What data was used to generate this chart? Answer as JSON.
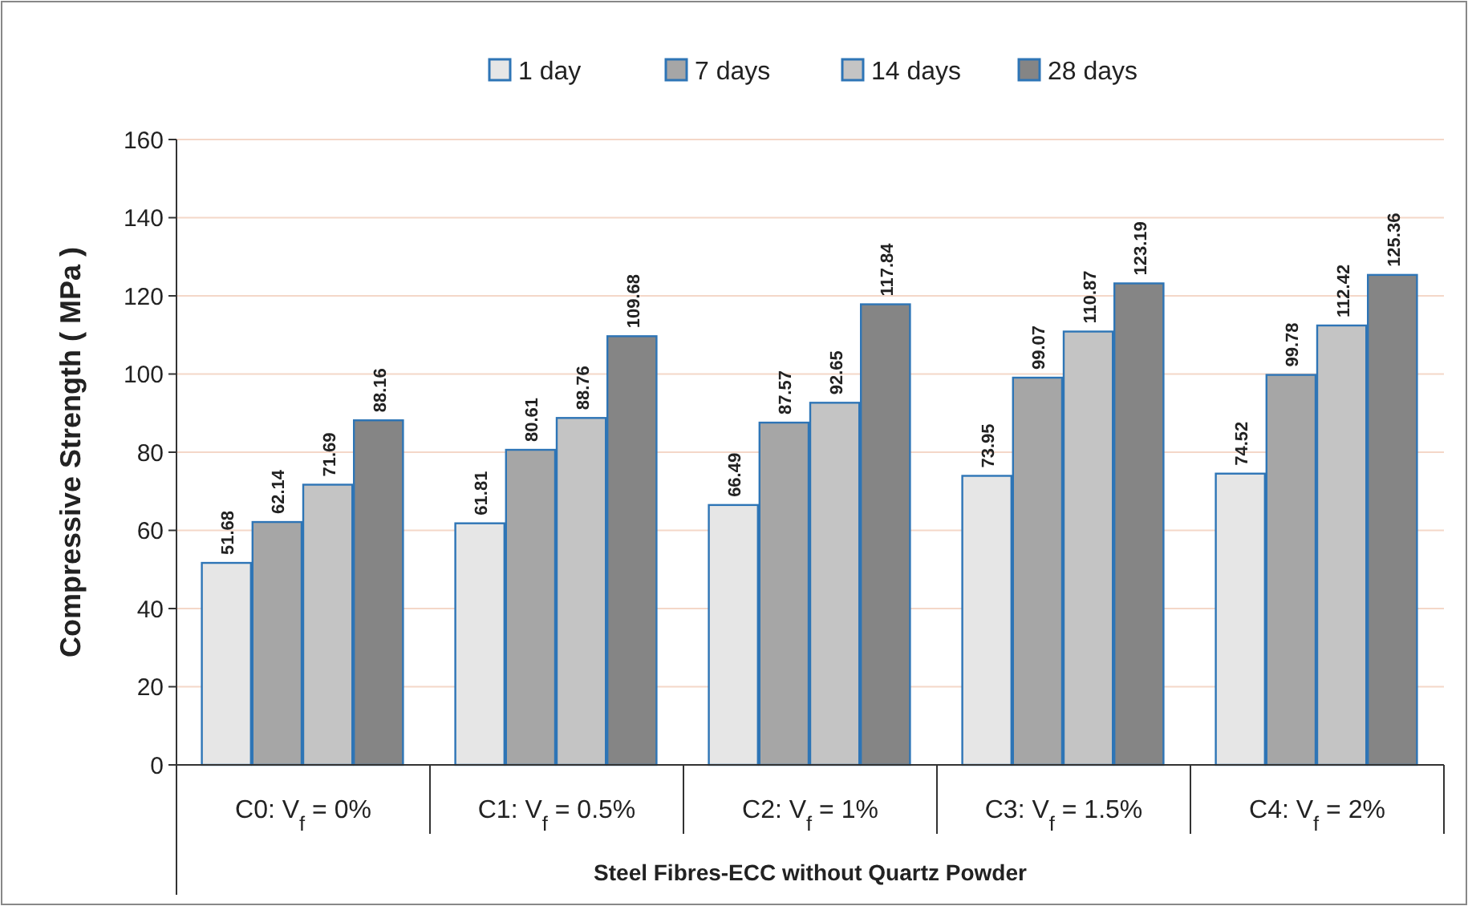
{
  "chart_data": {
    "type": "bar",
    "xlabel": "Steel Fibres-ECC without Quartz Powder",
    "ylabel": "Compressive Strength ( MPa )",
    "categories": [
      "C0: V$_{f}$ = 0%",
      "C1: V$_{f}$ = 0.5%",
      "C2: V$_{f}$ = 1%",
      "C3: V$_{f}$ = 1.5%",
      "C4: V$_{f}$ = 2%"
    ],
    "series": [
      {
        "name": "1 day",
        "color": "#e6e6e6",
        "values": [
          51.68,
          61.81,
          66.49,
          73.95,
          74.52
        ]
      },
      {
        "name": "7 days",
        "color": "#a6a6a6",
        "values": [
          62.14,
          80.61,
          87.57,
          99.07,
          99.78
        ]
      },
      {
        "name": "14 days",
        "color": "#c4c4c4",
        "values": [
          71.69,
          88.76,
          92.65,
          110.87,
          112.42
        ]
      },
      {
        "name": "28 days",
        "color": "#858585",
        "values": [
          88.16,
          109.68,
          117.84,
          123.19,
          125.36
        ]
      }
    ],
    "ylim": [
      0,
      160
    ],
    "yticks": [
      0,
      20,
      40,
      60,
      80,
      100,
      120,
      140,
      160
    ],
    "grid": "y",
    "legend": "top",
    "data_labels": true
  }
}
